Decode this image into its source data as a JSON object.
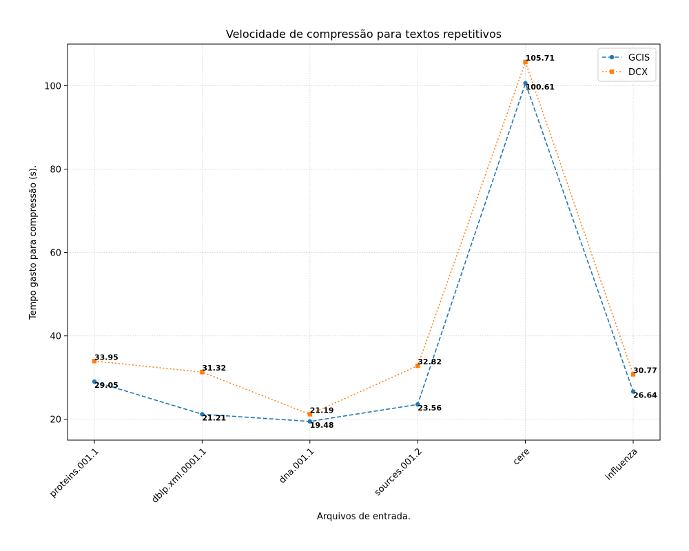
{
  "chart_data": {
    "type": "line",
    "title": "Velocidade de compressão para textos repetitivos",
    "xlabel": "Arquivos de entrada.",
    "ylabel": "Tempo gasto para compressão (s).",
    "categories": [
      "proteins.001.1",
      "dblp.xml.0001.1",
      "dna.001.1",
      "sources.001.2",
      "cere",
      "influenza"
    ],
    "ylim": [
      15,
      110
    ],
    "yticks": [
      20,
      40,
      60,
      80,
      100
    ],
    "grid": true,
    "legend_position": "top-right",
    "series": [
      {
        "name": "GCIS",
        "values": [
          29.05,
          21.21,
          19.48,
          23.56,
          100.61,
          26.64
        ],
        "labels": [
          "29.05",
          "21.21",
          "19.48",
          "23.56",
          "100.61",
          "26.64"
        ],
        "color": "#1f77b4",
        "line_style": "dashed",
        "marker": "circle"
      },
      {
        "name": "DCX",
        "values": [
          33.95,
          31.32,
          21.19,
          32.82,
          105.71,
          30.77
        ],
        "labels": [
          "33.95",
          "31.32",
          "21.19",
          "32.82",
          "105.71",
          "30.77"
        ],
        "color": "#ff7f0e",
        "line_style": "dotted",
        "marker": "square"
      }
    ]
  }
}
